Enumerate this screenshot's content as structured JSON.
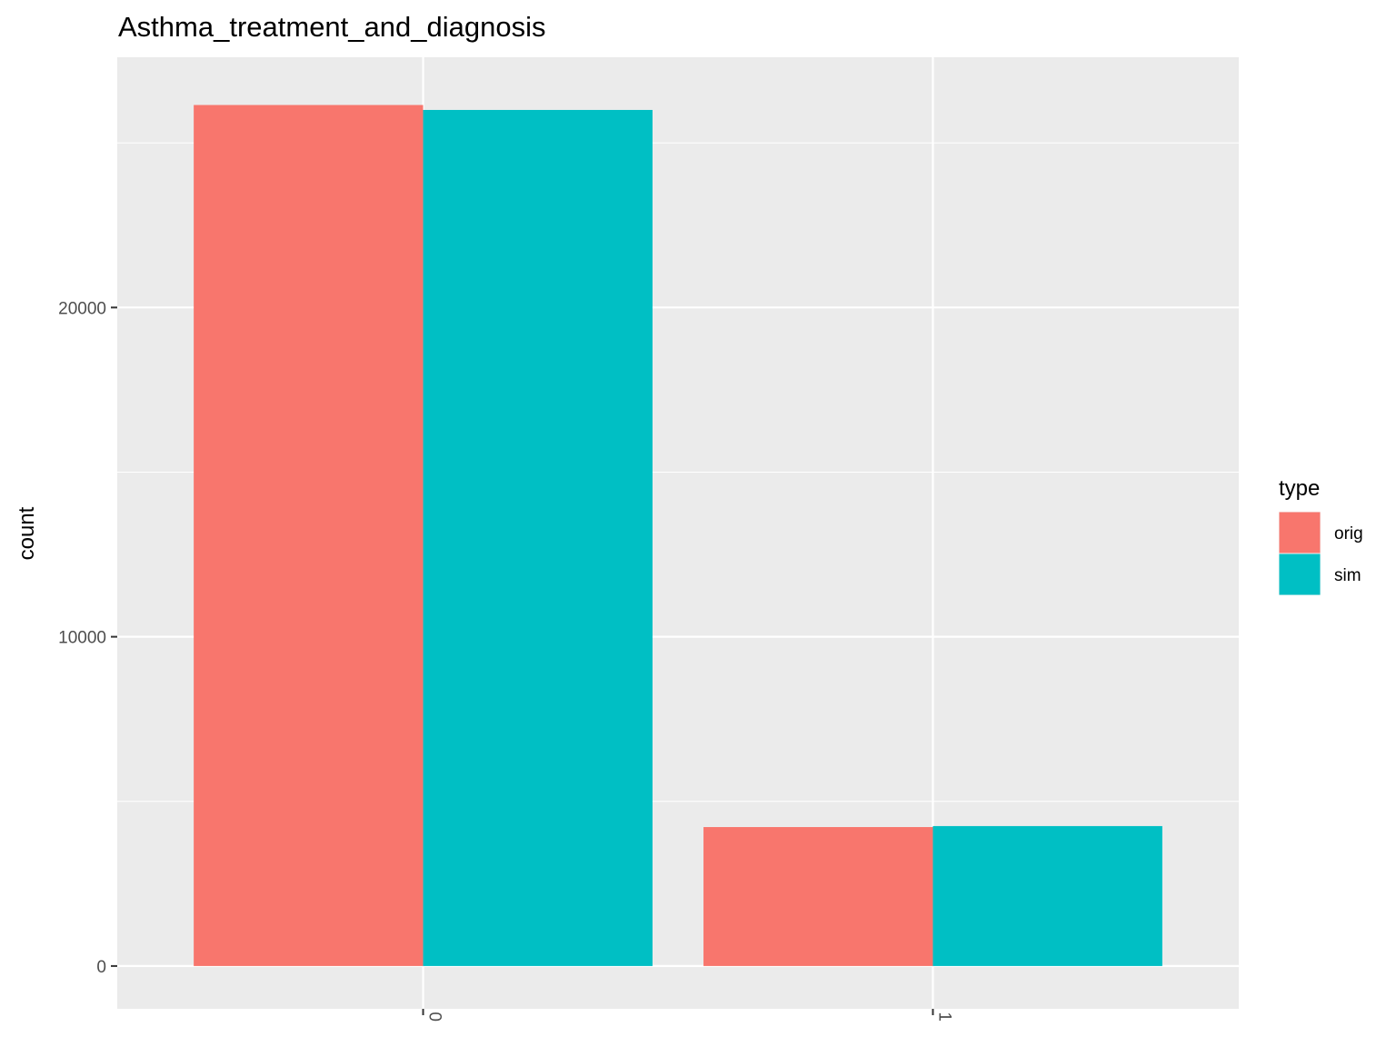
{
  "chart_data": {
    "type": "bar",
    "title": "Asthma_treatment_and_diagnosis",
    "xlabel": "",
    "ylabel": "count",
    "categories": [
      "0",
      "1"
    ],
    "series": [
      {
        "name": "orig",
        "color": "#F8766D",
        "values": [
          26150,
          4220
        ]
      },
      {
        "name": "sim",
        "color": "#00BFC4",
        "values": [
          26000,
          4250
        ]
      }
    ],
    "ylim": [
      -1300,
      27600
    ],
    "y_ticks": [
      0,
      10000,
      20000
    ],
    "y_tick_labels": [
      "0",
      "10000",
      "20000"
    ],
    "grid": true,
    "legend": {
      "title": "type",
      "position": "right"
    }
  }
}
